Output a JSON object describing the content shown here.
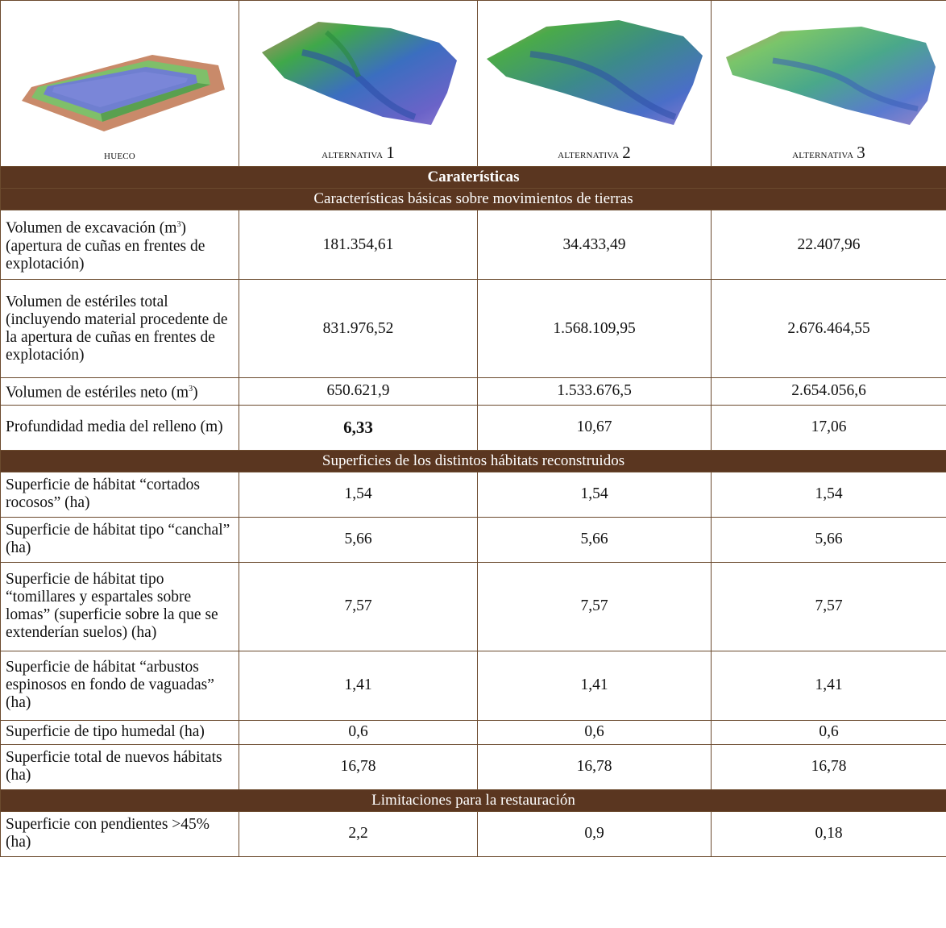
{
  "thumbnails": [
    {
      "caption_prefix": "hueco",
      "caption_num": ""
    },
    {
      "caption_prefix": "alternativa ",
      "caption_num": "1"
    },
    {
      "caption_prefix": "alternativa ",
      "caption_num": "2"
    },
    {
      "caption_prefix": "alternativa ",
      "caption_num": "3"
    }
  ],
  "main_header": "Caraterísticas",
  "sections": {
    "movimientos": {
      "title": "Características básicas sobre movimientos de tierras",
      "rows": [
        {
          "label": "Volumen de excavación (m",
          "label_sup": "3",
          "label_after": ") (apertura de cuñas en frentes de explotación)",
          "values": [
            "181.354,61",
            "34.433,49",
            "22.407,96"
          ]
        },
        {
          "label": "Volumen de estériles total (incluyendo material procedente de la apertura de cuñas en frentes de explotación)",
          "values": [
            "831.976,52",
            "1.568.109,95",
            "2.676.464,55"
          ]
        },
        {
          "label": "Volumen de estériles neto (m",
          "label_sup": "3",
          "label_after": ")",
          "values": [
            "650.621,9",
            "1.533.676,5",
            "2.654.056,6"
          ]
        },
        {
          "label": "Profundidad media del relleno (m)",
          "values": [
            "6,33",
            "10,67",
            "17,06"
          ]
        }
      ]
    },
    "habitats": {
      "title": "Superficies de los distintos hábitats reconstruidos",
      "rows": [
        {
          "label": "Superficie de hábitat “cortados rocosos” (ha)",
          "values": [
            "1,54",
            "1,54",
            "1,54"
          ]
        },
        {
          "label": "Superficie de hábitat tipo “canchal” (ha)",
          "values": [
            "5,66",
            "5,66",
            "5,66"
          ]
        },
        {
          "label": "Superficie de hábitat tipo “tomillares y espartales sobre lomas” (superficie sobre la que se extenderían suelos) (ha)",
          "values": [
            "7,57",
            "7,57",
            "7,57"
          ]
        },
        {
          "label": "Superficie de hábitat “arbustos espinosos en fondo de vaguadas” (ha)",
          "values": [
            "1,41",
            "1,41",
            "1,41"
          ]
        },
        {
          "label": "Superficie de tipo humedal (ha)",
          "values": [
            "0,6",
            "0,6",
            "0,6"
          ]
        },
        {
          "label": "Superficie total de nuevos hábitats (ha)",
          "values": [
            "16,78",
            "16,78",
            "16,78"
          ]
        }
      ]
    },
    "limitaciones": {
      "title": "Limitaciones para la restauración",
      "rows": [
        {
          "label": "Superficie con pendientes >45% (ha)",
          "values": [
            "2,2",
            "0,9",
            "0,18"
          ]
        }
      ]
    }
  },
  "colors": {
    "header_bg": "#5a3620",
    "border": "#6b4a2e"
  }
}
